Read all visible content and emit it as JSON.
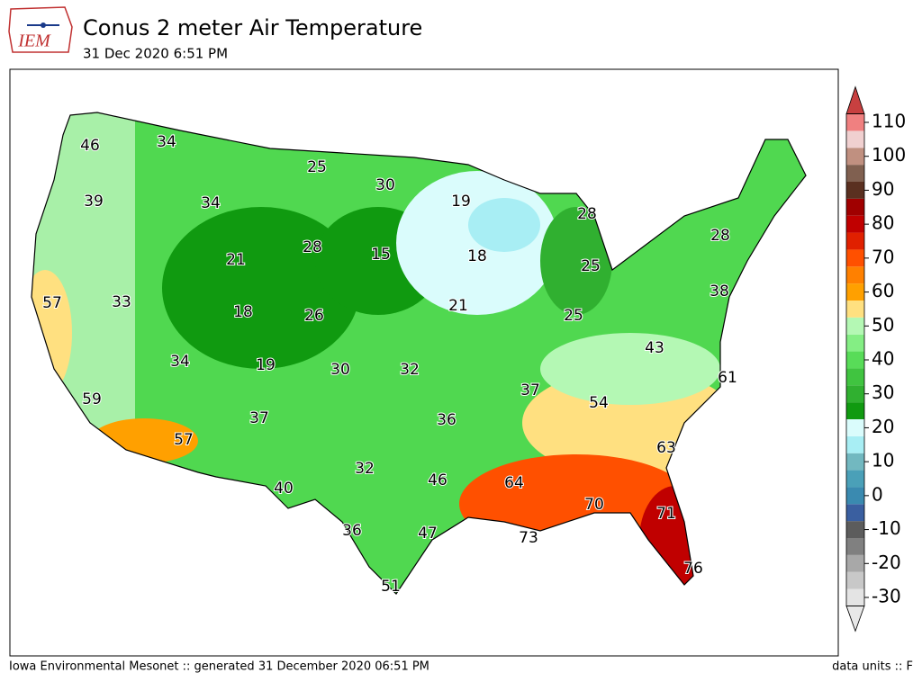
{
  "header": {
    "logo": "IEM",
    "title": "Conus 2 meter Air Temperature",
    "subtitle": "31 Dec 2020 6:51 PM"
  },
  "map": {
    "labels": [
      46,
      34,
      25,
      30,
      19,
      39,
      34,
      28,
      21,
      28,
      15,
      18,
      25,
      28,
      57,
      33,
      18,
      26,
      21,
      25,
      38,
      43,
      34,
      19,
      30,
      32,
      37,
      61,
      54,
      59,
      37,
      36,
      57,
      63,
      32,
      64,
      46,
      40,
      70,
      71,
      36,
      47,
      73,
      76,
      51
    ]
  },
  "colorbar": {
    "ticks": [
      -30,
      -20,
      -10,
      0,
      10,
      20,
      30,
      40,
      50,
      60,
      70,
      80,
      90,
      100,
      110
    ],
    "colors": [
      "#e4e4e4",
      "#c8c8c8",
      "#a8a8a8",
      "#808080",
      "#5c5c5c",
      "#3a5fa0",
      "#3a8ab0",
      "#4aa0b8",
      "#72b8c0",
      "#a8eef4",
      "#dafcfc",
      "#109a10",
      "#30b030",
      "#40c440",
      "#58dc58",
      "#84ee84",
      "#b4f8b4",
      "#ffe080",
      "#ffa000",
      "#ff8000",
      "#ff5000",
      "#e02000",
      "#c00000",
      "#a00000",
      "#5a3020",
      "#806050",
      "#c09080",
      "#f0d0d0",
      "#f08080"
    ],
    "top_color": "#c84040",
    "bottom_color": "#e8e8e8"
  },
  "footer": {
    "left": "Iowa Environmental Mesonet :: generated 31 December 2020 06:51 PM",
    "right": "data units :: F"
  }
}
